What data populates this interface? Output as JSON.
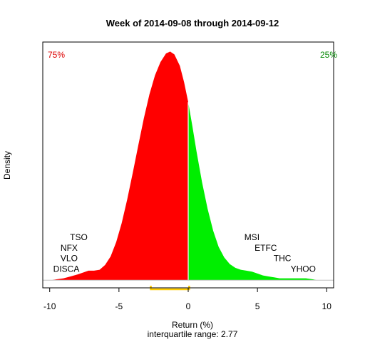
{
  "chart_data": {
    "type": "area",
    "title": "Week of 2014-09-08 through 2014-09-12",
    "xlabel": "Return (%)",
    "ylabel": "Density",
    "subtitle": "interquartile range: 2.77",
    "xlim": [
      -10.5,
      10.5
    ],
    "ylim": [
      -0.008,
      0.25
    ],
    "x_ticks": [
      -10,
      -5,
      0,
      5,
      10
    ],
    "split_x": 0,
    "below_pct_label": "75%",
    "above_pct_label": "25%",
    "below_color": "#ff0000",
    "above_color": "#00ee00",
    "below_label_color": "#dd0000",
    "above_label_color": "#008800",
    "iqr_bracket": {
      "from": -2.7,
      "to": 0.07,
      "color": "#ffcc00"
    },
    "density_curve": [
      [
        -9.9,
        0.0
      ],
      [
        -9.5,
        0.001
      ],
      [
        -9.0,
        0.002
      ],
      [
        -8.5,
        0.004
      ],
      [
        -8.0,
        0.006
      ],
      [
        -7.6,
        0.008
      ],
      [
        -7.2,
        0.01
      ],
      [
        -6.8,
        0.01
      ],
      [
        -6.4,
        0.011
      ],
      [
        -6.0,
        0.016
      ],
      [
        -5.6,
        0.025
      ],
      [
        -5.2,
        0.04
      ],
      [
        -4.8,
        0.06
      ],
      [
        -4.4,
        0.085
      ],
      [
        -4.0,
        0.113
      ],
      [
        -3.6,
        0.142
      ],
      [
        -3.2,
        0.17
      ],
      [
        -2.8,
        0.195
      ],
      [
        -2.4,
        0.215
      ],
      [
        -2.0,
        0.229
      ],
      [
        -1.6,
        0.238
      ],
      [
        -1.3,
        0.24
      ],
      [
        -1.0,
        0.237
      ],
      [
        -0.6,
        0.225
      ],
      [
        -0.3,
        0.208
      ],
      [
        0.0,
        0.187
      ],
      [
        0.3,
        0.162
      ],
      [
        0.6,
        0.135
      ],
      [
        1.0,
        0.103
      ],
      [
        1.4,
        0.075
      ],
      [
        1.8,
        0.052
      ],
      [
        2.2,
        0.035
      ],
      [
        2.6,
        0.024
      ],
      [
        3.0,
        0.017
      ],
      [
        3.4,
        0.013
      ],
      [
        3.8,
        0.011
      ],
      [
        4.2,
        0.01
      ],
      [
        4.6,
        0.009
      ],
      [
        5.0,
        0.007
      ],
      [
        5.4,
        0.005
      ],
      [
        5.8,
        0.004
      ],
      [
        6.2,
        0.003
      ],
      [
        6.6,
        0.002
      ],
      [
        7.0,
        0.002
      ],
      [
        7.5,
        0.002
      ],
      [
        8.0,
        0.002
      ],
      [
        8.5,
        0.002
      ],
      [
        9.0,
        0.001
      ],
      [
        9.3,
        0.0
      ]
    ],
    "annotations": [
      {
        "text": "TSO",
        "x": -7.9,
        "y": 0.042
      },
      {
        "text": "NFX",
        "x": -8.6,
        "y": 0.031
      },
      {
        "text": "VLO",
        "x": -8.6,
        "y": 0.02
      },
      {
        "text": "DISCA",
        "x": -8.8,
        "y": 0.009
      },
      {
        "text": "MSI",
        "x": 4.6,
        "y": 0.042
      },
      {
        "text": "ETFC",
        "x": 5.6,
        "y": 0.031
      },
      {
        "text": "THC",
        "x": 6.8,
        "y": 0.02
      },
      {
        "text": "YHOO",
        "x": 8.3,
        "y": 0.009
      }
    ]
  }
}
